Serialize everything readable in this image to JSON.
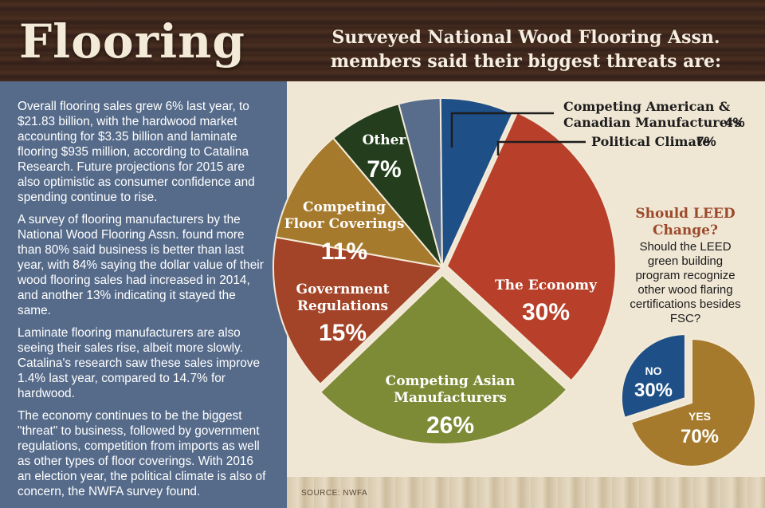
{
  "header": {
    "title": "Flooring",
    "chart_title_line1": "Surveyed National Wood Flooring Assn.",
    "chart_title_line2": "members said their biggest threats are:"
  },
  "sidebar": {
    "paragraphs": [
      "Overall flooring sales grew 6% last year, to $21.83 billion, with the hardwood market accounting for $3.35 billion and laminate flooring $935 million, according to Catalina Research. Future projections for 2015 are also optimistic as consumer confidence and spending continue to rise.",
      "A survey of flooring manufacturers by the National Wood Flooring Assn. found more than 80% said business is better than last year, with 84% saying the dollar value of their wood flooring sales had increased in 2014, and another 13% indicating it stayed the same.",
      "Laminate flooring manufacturers are also seeing their sales rise, albeit more slowly. Catalina's research saw these sales improve 1.4% last year, compared to 14.7% for hardwood.",
      "The economy continues to be the biggest \"threat\" to business, followed by government regulations, competition from imports as well as other types of floor coverings. With 2016 an election year, the political climate is also of concern, the NWFA survey found."
    ]
  },
  "leed": {
    "title_line1": "Should LEED",
    "title_line2": "Change?",
    "question": "Should the LEED green building program recognize other wood flaring certifications besides FSC?"
  },
  "source": "SOURCE: NWFA",
  "chart_data": [
    {
      "type": "pie",
      "title": "Surveyed National Wood Flooring Assn. members said their biggest threats are:",
      "slices": [
        {
          "label": "Competing American & Canadian Manufacturers",
          "value": 4,
          "value_label": "4%",
          "color": "#586d8c"
        },
        {
          "label": "Political Climate",
          "value": 7,
          "value_label": "7%",
          "color": "#1e4f86"
        },
        {
          "label": "The Economy",
          "value": 30,
          "value_label": "30%",
          "color": "#b8402a"
        },
        {
          "label": "Competing Asian Manufacturers",
          "value": 26,
          "value_label": "26%",
          "color": "#7d8a36"
        },
        {
          "label": "Government Regulations",
          "value": 15,
          "value_label": "15%",
          "color": "#a34428"
        },
        {
          "label": "Competing Floor Coverings",
          "value": 11,
          "value_label": "11%",
          "color": "#a67a2c"
        },
        {
          "label": "Other",
          "value": 7,
          "value_label": "7%",
          "color": "#243d1c"
        }
      ],
      "label_lines": {
        "economy": [
          "The Economy"
        ],
        "asian": [
          "Competing Asian",
          "Manufacturers"
        ],
        "gov": [
          "Government",
          "Regulations"
        ],
        "floor": [
          "Competing",
          "Floor Coverings"
        ],
        "other": [
          "Other"
        ],
        "american": [
          "Competing American &",
          "Canadian Manufacturers"
        ],
        "political": [
          "Political Climate"
        ]
      }
    },
    {
      "type": "pie",
      "title": "Should LEED Change?",
      "slices": [
        {
          "label": "NO",
          "value": 30,
          "value_label": "30%",
          "color": "#1e4f86"
        },
        {
          "label": "YES",
          "value": 70,
          "value_label": "70%",
          "color": "#a67a2c"
        }
      ]
    }
  ]
}
